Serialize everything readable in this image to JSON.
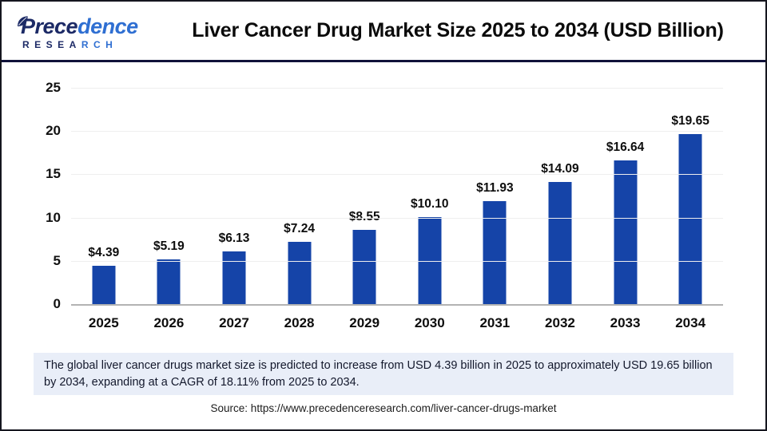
{
  "header": {
    "logo": {
      "word_head": "Prece",
      "word_tail": "dence",
      "sub_head": "RESEA",
      "sub_tail": "RCH"
    },
    "title": "Liver Cancer Drug Market Size 2025 to 2034 (USD Billion)"
  },
  "chart_data": {
    "type": "bar",
    "title": "Liver Cancer Drug Market Size 2025 to 2034 (USD Billion)",
    "categories": [
      "2025",
      "2026",
      "2027",
      "2028",
      "2029",
      "2030",
      "2031",
      "2032",
      "2033",
      "2034"
    ],
    "values": [
      4.39,
      5.19,
      6.13,
      7.24,
      8.55,
      10.1,
      11.93,
      14.09,
      16.64,
      19.65
    ],
    "value_labels": [
      "$4.39",
      "$5.19",
      "$6.13",
      "$7.24",
      "$8.55",
      "$10.10",
      "$11.93",
      "$14.09",
      "$16.64",
      "$19.65"
    ],
    "unit": "USD Billion",
    "xlabel": "",
    "ylabel": "",
    "ylim": [
      0,
      25
    ],
    "yticks": [
      0,
      5,
      10,
      15,
      20,
      25
    ],
    "grid": "horizontal",
    "legend": "none",
    "bar_color": "#1544a8"
  },
  "footnote": {
    "text": "The global liver cancer drugs market size is predicted to increase from USD 4.39 billion in 2025 to approximately USD 19.65 billion by 2034, expanding at a CAGR of 18.11% from 2025 to 2034."
  },
  "source": {
    "text": "Source: https://www.precedenceresearch.com/liver-cancer-drugs-market"
  },
  "colors": {
    "bar": "#1544a8",
    "separator_navy": "#10123a",
    "footnote_bg": "#e9eef8",
    "logo_navy": "#1c2a66",
    "logo_blue": "#2f6fd2",
    "gridline": "#eeeeee",
    "baseline": "#b3b3b3"
  }
}
